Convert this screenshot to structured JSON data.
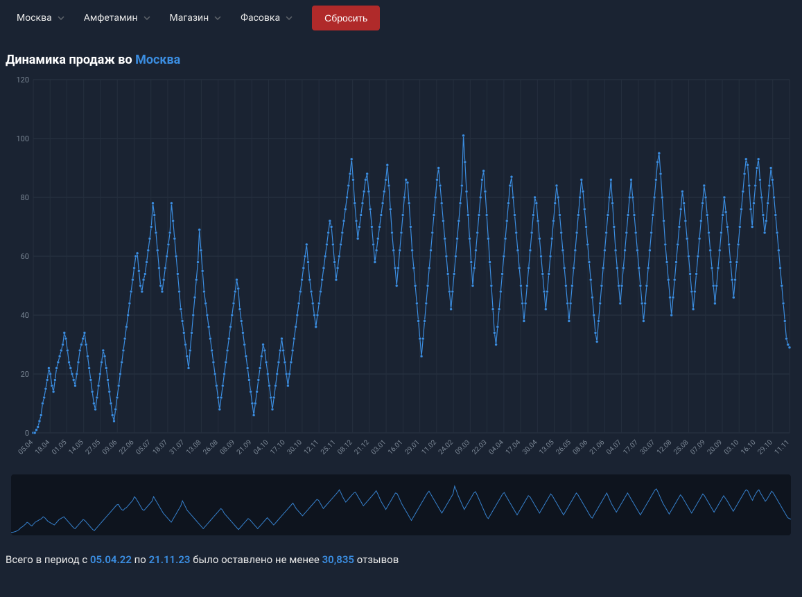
{
  "filters": {
    "items": [
      {
        "label": "Москва"
      },
      {
        "label": "Амфетамин"
      },
      {
        "label": "Магазин"
      },
      {
        "label": "Фасовка"
      }
    ],
    "reset_label": "Сбросить"
  },
  "chart": {
    "title_prefix": "Динамика продаж во ",
    "title_city": "Москва",
    "type": "line",
    "line_color": "#3b8de0",
    "marker_color": "#3b8de0",
    "background_color": "#1a2332",
    "grid_color": "#2a3544",
    "ylim": [
      0,
      120
    ],
    "ytick_step": 20,
    "yticks": [
      0,
      20,
      40,
      60,
      80,
      100,
      120
    ],
    "x_labels": [
      "05.04",
      "18.04",
      "01.05",
      "14.05",
      "27.05",
      "09.06",
      "22.06",
      "05.07",
      "18.07",
      "31.07",
      "13.08",
      "26.08",
      "08.09",
      "21.09",
      "04.10",
      "17.10",
      "30.10",
      "12.11",
      "25.11",
      "08.12",
      "21.12",
      "03.01",
      "16.01",
      "29.01",
      "11.02",
      "24.02",
      "09.03",
      "22.03",
      "04.04",
      "17.04",
      "30.04",
      "13.05",
      "26.05",
      "08.06",
      "21.06",
      "04.07",
      "17.07",
      "30.07",
      "12.08",
      "25.08",
      "07.09",
      "20.09",
      "03.10",
      "16.10",
      "29.10",
      "11.11"
    ],
    "values": [
      0,
      0,
      1,
      2,
      4,
      6,
      10,
      12,
      15,
      18,
      22,
      20,
      16,
      14,
      18,
      22,
      24,
      26,
      28,
      30,
      34,
      32,
      28,
      24,
      22,
      20,
      18,
      16,
      20,
      24,
      28,
      30,
      32,
      34,
      30,
      26,
      22,
      18,
      14,
      10,
      8,
      12,
      16,
      20,
      24,
      28,
      26,
      22,
      18,
      14,
      10,
      6,
      4,
      8,
      12,
      16,
      20,
      24,
      28,
      32,
      36,
      40,
      44,
      48,
      52,
      56,
      60,
      61,
      55,
      50,
      48,
      52,
      54,
      58,
      62,
      66,
      70,
      78,
      74,
      68,
      62,
      56,
      50,
      48,
      52,
      56,
      60,
      64,
      68,
      78,
      72,
      66,
      60,
      54,
      48,
      42,
      38,
      34,
      30,
      26,
      22,
      28,
      34,
      40,
      46,
      52,
      58,
      69,
      62,
      55,
      48,
      44,
      40,
      36,
      32,
      28,
      24,
      20,
      16,
      12,
      8,
      12,
      16,
      20,
      24,
      28,
      32,
      36,
      40,
      44,
      48,
      52,
      49,
      42,
      38,
      34,
      30,
      26,
      22,
      18,
      14,
      10,
      6,
      10,
      14,
      18,
      22,
      26,
      30,
      28,
      24,
      20,
      16,
      12,
      8,
      12,
      16,
      20,
      24,
      28,
      32,
      28,
      24,
      20,
      16,
      20,
      24,
      28,
      32,
      36,
      40,
      44,
      48,
      52,
      56,
      60,
      64,
      58,
      52,
      48,
      44,
      40,
      36,
      40,
      44,
      48,
      52,
      56,
      60,
      64,
      68,
      72,
      70,
      64,
      58,
      52,
      56,
      60,
      64,
      68,
      72,
      76,
      80,
      84,
      88,
      93,
      86,
      78,
      72,
      66,
      70,
      74,
      78,
      82,
      86,
      88,
      82,
      76,
      70,
      64,
      58,
      62,
      66,
      70,
      74,
      78,
      82,
      86,
      91,
      84,
      76,
      68,
      62,
      56,
      50,
      56,
      62,
      68,
      74,
      80,
      86,
      85,
      78,
      70,
      62,
      56,
      50,
      44,
      38,
      32,
      26,
      32,
      38,
      44,
      50,
      56,
      62,
      68,
      74,
      80,
      86,
      90,
      84,
      78,
      72,
      66,
      60,
      54,
      48,
      42,
      48,
      54,
      60,
      66,
      72,
      78,
      84,
      101,
      92,
      82,
      74,
      66,
      58,
      50,
      56,
      62,
      68,
      74,
      80,
      86,
      89,
      82,
      74,
      66,
      58,
      50,
      42,
      34,
      30,
      36,
      42,
      48,
      54,
      60,
      66,
      72,
      78,
      84,
      87,
      80,
      74,
      68,
      62,
      56,
      50,
      44,
      38,
      44,
      50,
      56,
      62,
      68,
      74,
      80,
      78,
      72,
      66,
      60,
      54,
      48,
      42,
      48,
      54,
      60,
      66,
      72,
      78,
      84,
      80,
      74,
      68,
      62,
      56,
      50,
      44,
      38,
      44,
      50,
      56,
      62,
      68,
      74,
      80,
      86,
      82,
      76,
      70,
      64,
      58,
      52,
      46,
      40,
      34,
      31,
      38,
      44,
      50,
      56,
      62,
      68,
      74,
      80,
      86,
      78,
      70,
      62,
      56,
      50,
      44,
      50,
      56,
      62,
      68,
      74,
      80,
      86,
      80,
      74,
      68,
      62,
      56,
      50,
      44,
      38,
      44,
      50,
      56,
      62,
      68,
      74,
      80,
      86,
      92,
      95,
      88,
      80,
      72,
      64,
      58,
      52,
      46,
      40,
      46,
      52,
      58,
      64,
      70,
      76,
      82,
      78,
      72,
      66,
      60,
      54,
      48,
      42,
      48,
      54,
      60,
      66,
      72,
      78,
      84,
      80,
      74,
      68,
      62,
      56,
      50,
      44,
      50,
      56,
      62,
      68,
      74,
      80,
      75,
      70,
      64,
      58,
      52,
      46,
      52,
      58,
      64,
      70,
      76,
      82,
      88,
      93,
      91,
      84,
      76,
      70,
      78,
      84,
      90,
      93,
      86,
      80,
      74,
      68,
      72,
      78,
      84,
      90,
      86,
      80,
      74,
      68,
      62,
      56,
      50,
      44,
      38,
      32,
      30,
      29
    ],
    "label_fontsize": 11,
    "marker_radius": 2
  },
  "brush": {
    "background": "#0e141e",
    "line_color": "#3b8de0"
  },
  "summary": {
    "prefix": "Всего в период с ",
    "date_from": "05.04.22",
    "mid": " по ",
    "date_to": "21.11.23",
    "after_dates": " было оставлено не менее ",
    "count": "30,835",
    "suffix": " отзывов"
  }
}
